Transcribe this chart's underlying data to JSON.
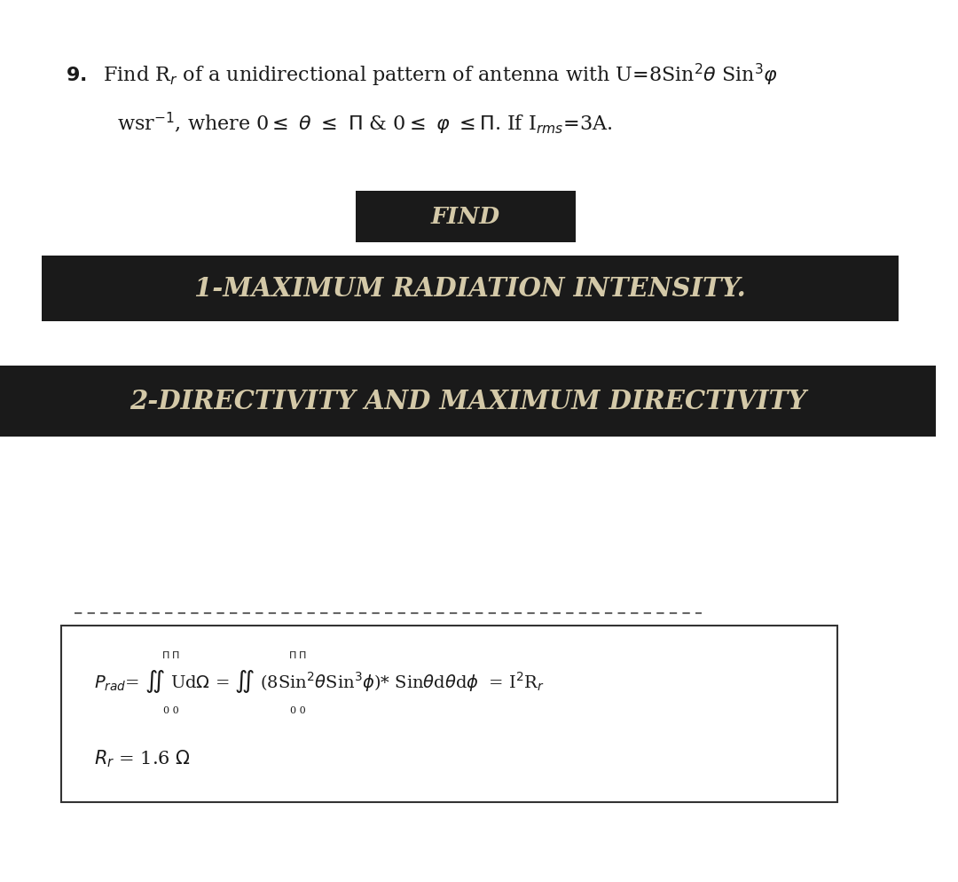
{
  "bg_color": "#ffffff",
  "banner_bg": "#1a1a1a",
  "banner_text_color": "#d4c9a8",
  "find_bg": "#1a1a1a",
  "find_text_color": "#d4c9a8",
  "box_edge_color": "#333333",
  "dashed_line_color": "#666666",
  "text_color": "#1a1a1a",
  "banner1_text": "1-MAXIMUM RADIATION INTENSITY.",
  "banner2_text": "2-DIRECTIVITY AND MAXIMUM DIRECTIVITY"
}
